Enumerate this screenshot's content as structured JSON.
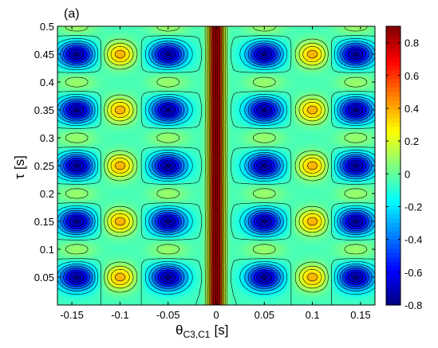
{
  "panel_label": "(a)",
  "chart_data": {
    "type": "heatmap",
    "title": "",
    "panel_label": "(a)",
    "xlabel_symbol": "θ",
    "xlabel_subscript": "C3,C1",
    "xlabel_unit": "[s]",
    "ylabel_symbol": "τ",
    "ylabel_unit": "[s]",
    "xlim": [
      -0.165,
      0.165
    ],
    "ylim": [
      0.0,
      0.5
    ],
    "xticks": [
      -0.15,
      -0.1,
      -0.05,
      0,
      0.05,
      0.1,
      0.15
    ],
    "xtick_labels": [
      "-0.15",
      "-0.1",
      "-0.05",
      "0",
      "0.05",
      "0.1",
      "0.15"
    ],
    "yticks": [
      0.05,
      0.1,
      0.15,
      0.2,
      0.25,
      0.3,
      0.35,
      0.4,
      0.45,
      0.5
    ],
    "ytick_labels": [
      "0.05",
      "0.1",
      "0.15",
      "0.2",
      "0.25",
      "0.3",
      "0.35",
      "0.4",
      "0.45",
      "0.5"
    ],
    "colorbar": {
      "range": [
        -0.8,
        0.9
      ],
      "ticks": [
        -0.8,
        -0.6,
        -0.4,
        -0.2,
        0,
        0.2,
        0.4,
        0.6,
        0.8
      ],
      "tick_labels": [
        "-0.8",
        "-0.6",
        "-0.4",
        "-0.2",
        "0",
        "0.2",
        "0.4",
        "0.6",
        "0.8"
      ],
      "colormap": "jet"
    },
    "contour_lines": true,
    "features": {
      "central_ridge": {
        "x": 0,
        "value": 0.9
      },
      "blue_minima_x": [
        -0.145,
        -0.05,
        0.05,
        0.145
      ],
      "orange_maxima_x": [
        -0.1,
        0.1
      ],
      "row_y": [
        0.05,
        0.15,
        0.25,
        0.35,
        0.45
      ]
    }
  }
}
